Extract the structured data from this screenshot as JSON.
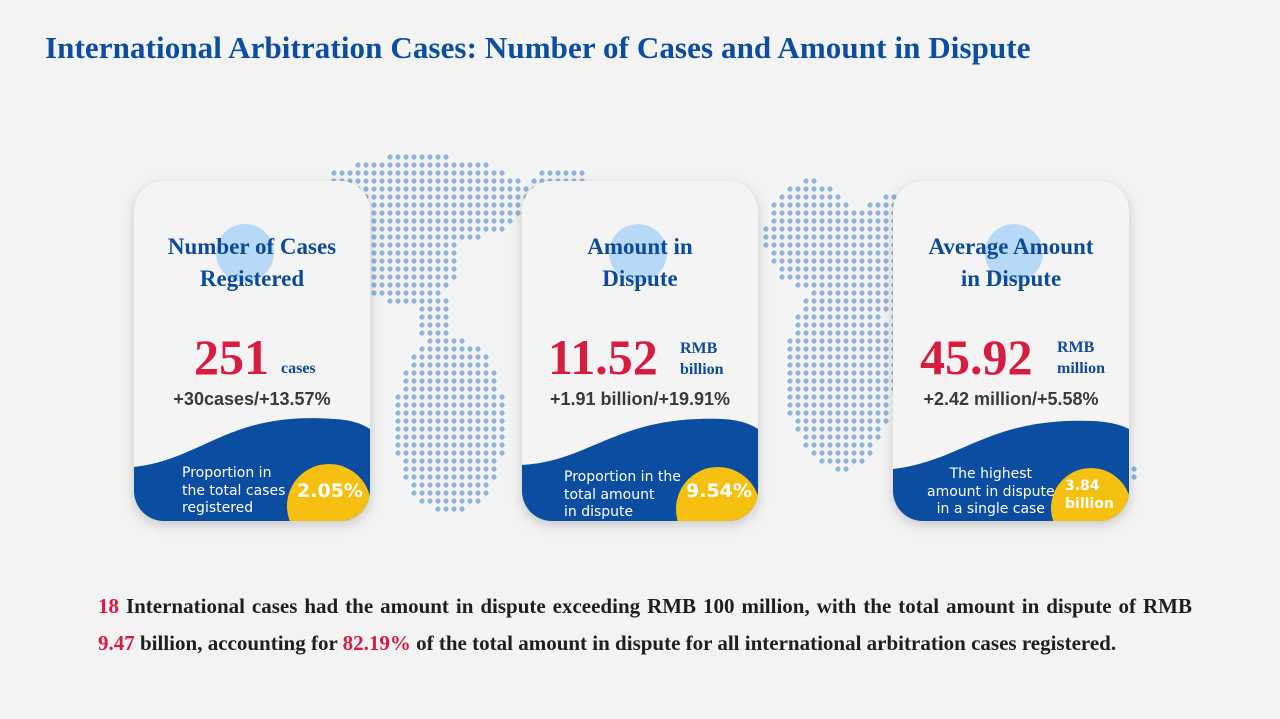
{
  "page": {
    "title": "International Arbitration Cases: Number of Cases and Amount in Dispute"
  },
  "colors": {
    "title_blue": "#0b4da1",
    "accent_red": "#d81c3f",
    "wave_blue": "#0b4da1",
    "highlight_yellow": "#f6c010",
    "bubble_blue": "#b7d9f7",
    "map_dots": "#8fb3da"
  },
  "cards": [
    {
      "title_line1": "Number of Cases",
      "title_line2": "Registered",
      "value": "251",
      "unit_line1": "cases",
      "unit_line2": "",
      "change": "+30cases/+13.57%",
      "foot_line1": "Proportion in",
      "foot_line2": "the total cases",
      "foot_line3": "registered",
      "foot_value_line1": "2.05%",
      "foot_value_line2": ""
    },
    {
      "title_line1": "Amount in",
      "title_line2": "Dispute",
      "value": "11.52",
      "unit_line1": "RMB",
      "unit_line2": "billion",
      "change": "+1.91 billion/+19.91%",
      "foot_line1": "Proportion in the",
      "foot_line2": "total amount",
      "foot_line3": "in dispute",
      "foot_value_line1": "9.54%",
      "foot_value_line2": ""
    },
    {
      "title_line1": "Average Amount",
      "title_line2": "in Dispute",
      "value": "45.92",
      "unit_line1": "RMB",
      "unit_line2": "million",
      "change": "+2.42 million/+5.58%",
      "foot_line1": "The highest",
      "foot_line2": "amount in dispute",
      "foot_line3": "in a single case",
      "foot_value_line1": "3.84",
      "foot_value_line2": "billion"
    }
  ],
  "summary": {
    "count": "18",
    "part1": " International cases had the amount in dispute exceeding RMB 100 million, with the total amount in dispute of RMB ",
    "total": "9.47",
    "part2": " billion, accounting for ",
    "percent": "82.19%",
    "part3": " of the total amount in dispute for all international arbitration cases registered."
  }
}
